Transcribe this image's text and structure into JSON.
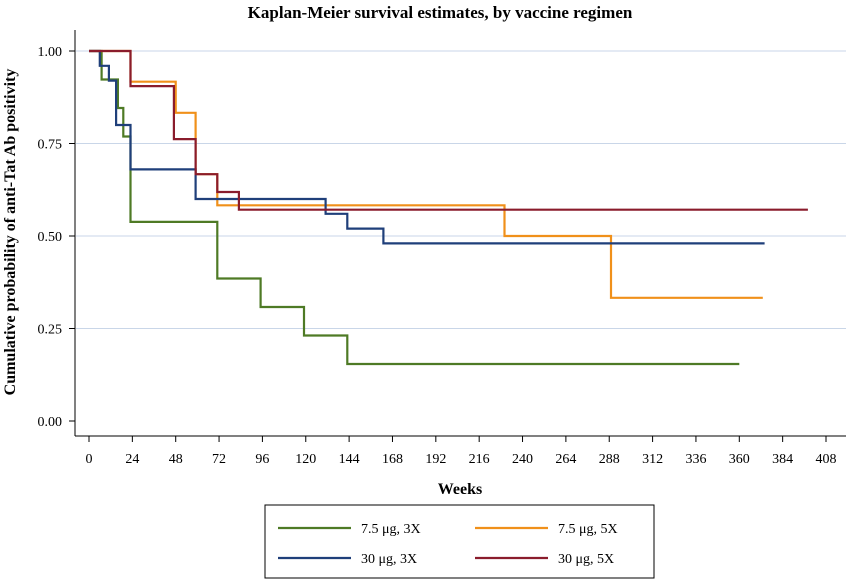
{
  "chart_data": {
    "type": "line",
    "step": true,
    "title": "Kaplan-Meier survival estimates, by vaccine regimen",
    "xlabel": "Weeks",
    "ylabel": "Cumulative probability of anti-Tat Ab positivity",
    "xlim": [
      0,
      408
    ],
    "ylim": [
      0,
      1
    ],
    "xticks": [
      "0",
      "24",
      "48",
      "72",
      "96",
      "120",
      "144",
      "168",
      "192",
      "216",
      "240",
      "264",
      "288",
      "312",
      "336",
      "360",
      "384",
      "408"
    ],
    "yticks": [
      "0.00",
      "0.25",
      "0.50",
      "0.75",
      "1.00"
    ],
    "grid": "horizontal",
    "legend_position": "bottom",
    "series": [
      {
        "name": "7.5 μg, 3X",
        "color": "#4e7a25",
        "points": [
          [
            0,
            1.0
          ],
          [
            7,
            1.0
          ],
          [
            7,
            0.923
          ],
          [
            16,
            0.923
          ],
          [
            16,
            0.846
          ],
          [
            19,
            0.846
          ],
          [
            19,
            0.769
          ],
          [
            23,
            0.769
          ],
          [
            23,
            0.538
          ],
          [
            71,
            0.538
          ],
          [
            71,
            0.385
          ],
          [
            95,
            0.385
          ],
          [
            95,
            0.308
          ],
          [
            119,
            0.308
          ],
          [
            119,
            0.231
          ],
          [
            143,
            0.231
          ],
          [
            143,
            0.154
          ],
          [
            360,
            0.154
          ]
        ]
      },
      {
        "name": "7.5 μg, 5X",
        "color": "#f0901a",
        "points": [
          [
            0,
            1.0
          ],
          [
            23,
            1.0
          ],
          [
            23,
            0.917
          ],
          [
            48,
            0.917
          ],
          [
            48,
            0.833
          ],
          [
            59,
            0.833
          ],
          [
            59,
            0.667
          ],
          [
            71,
            0.667
          ],
          [
            71,
            0.583
          ],
          [
            230,
            0.583
          ],
          [
            230,
            0.5
          ],
          [
            289,
            0.5
          ],
          [
            289,
            0.333
          ],
          [
            373,
            0.333
          ]
        ]
      },
      {
        "name": "30 μg, 3X",
        "color": "#1f3f7a",
        "points": [
          [
            0,
            1.0
          ],
          [
            6,
            1.0
          ],
          [
            6,
            0.96
          ],
          [
            11,
            0.96
          ],
          [
            11,
            0.92
          ],
          [
            15,
            0.92
          ],
          [
            15,
            0.8
          ],
          [
            23,
            0.8
          ],
          [
            23,
            0.68
          ],
          [
            59,
            0.68
          ],
          [
            59,
            0.6
          ],
          [
            131,
            0.6
          ],
          [
            131,
            0.56
          ],
          [
            143,
            0.56
          ],
          [
            143,
            0.52
          ],
          [
            163,
            0.52
          ],
          [
            163,
            0.48
          ],
          [
            374,
            0.48
          ]
        ]
      },
      {
        "name": "30 μg, 5X",
        "color": "#8a1c2c",
        "points": [
          [
            0,
            1.0
          ],
          [
            23,
            1.0
          ],
          [
            23,
            0.905
          ],
          [
            47,
            0.905
          ],
          [
            47,
            0.762
          ],
          [
            59,
            0.762
          ],
          [
            59,
            0.667
          ],
          [
            71,
            0.667
          ],
          [
            71,
            0.619
          ],
          [
            83,
            0.619
          ],
          [
            83,
            0.571
          ],
          [
            398,
            0.571
          ]
        ]
      }
    ]
  }
}
